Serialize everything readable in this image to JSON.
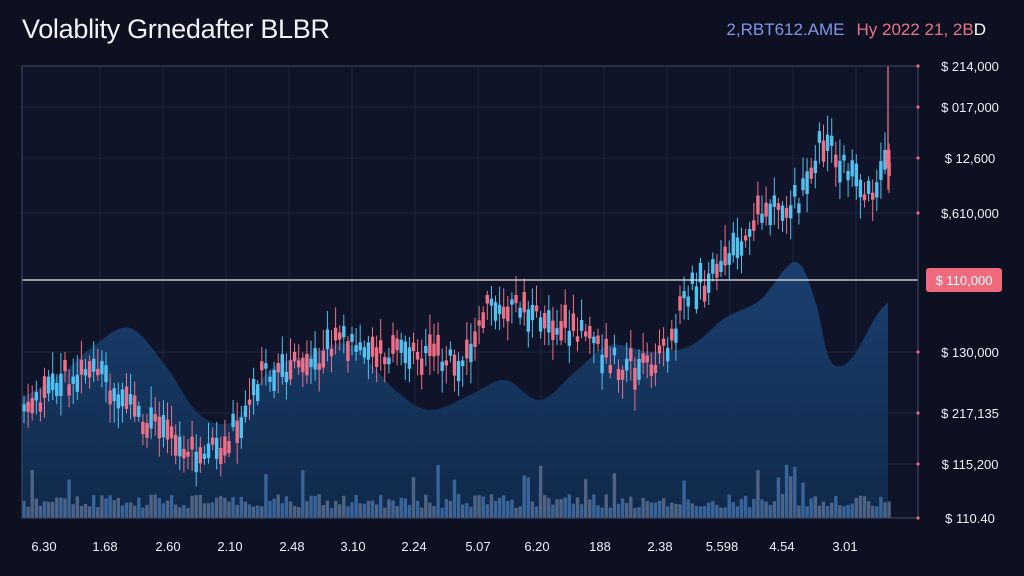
{
  "header": {
    "title": "Volablity Grnedafter BLBR",
    "symbol": "2,RBT612.AME",
    "date": "Hy 2022 21, 2B",
    "date_suffix": "D"
  },
  "colors": {
    "background": "#0d1020",
    "up": "#53c0f0",
    "down": "#ee6f86",
    "area": "#17375e",
    "volume": "#3f6fa8",
    "price_line": "#e6e6ea",
    "price_tag": "#f06a7e"
  },
  "chart_data": {
    "type": "candlestick",
    "y_tick_labels": [
      "$ 214,000",
      "$ 017,000",
      "$ 12,600",
      "$,610,000",
      "$ 110,000",
      "$ 130,000",
      "$ 217,135",
      "$ 115,200",
      "$ 110.40"
    ],
    "x_tick_labels": [
      "6.30",
      "1.68",
      "2.60",
      "2.10",
      "2.48",
      "3.10",
      "2.24",
      "5.07",
      "6.20",
      "188",
      "2.38",
      "5.598",
      "4.54",
      "3.01"
    ],
    "current_price_label": "$ 110,000",
    "grid": true,
    "volume_panel": true,
    "area_overlay": true
  }
}
